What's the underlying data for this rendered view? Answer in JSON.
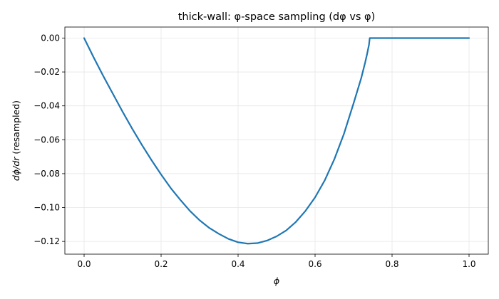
{
  "chart_data": {
    "type": "line",
    "title": "thick-wall: φ-space sampling (dφ vs φ)",
    "xlabel": "ϕ",
    "ylabel_math": "dϕ/dr",
    "ylabel_suffix": " (resampled)",
    "xlim": [
      -0.05,
      1.05
    ],
    "ylim": [
      -0.1275,
      0.0065
    ],
    "xticks": [
      0.0,
      0.2,
      0.4,
      0.6,
      0.8,
      1.0
    ],
    "xtick_labels": [
      "0.0",
      "0.2",
      "0.4",
      "0.6",
      "0.8",
      "1.0"
    ],
    "yticks": [
      0.0,
      -0.02,
      -0.04,
      -0.06,
      -0.08,
      -0.1,
      -0.12
    ],
    "ytick_labels": [
      "0.00",
      "−0.02",
      "−0.04",
      "−0.06",
      "−0.08",
      "−0.10",
      "−0.12"
    ],
    "grid": true,
    "line_color": "#1f77b4",
    "series": [
      {
        "x": [
          0.0,
          0.025,
          0.05,
          0.075,
          0.1,
          0.125,
          0.15,
          0.175,
          0.2,
          0.225,
          0.25,
          0.275,
          0.3,
          0.325,
          0.35,
          0.375,
          0.4,
          0.425,
          0.45,
          0.475,
          0.5,
          0.525,
          0.55,
          0.575,
          0.6,
          0.625,
          0.65,
          0.675,
          0.7,
          0.71,
          0.72,
          0.73,
          0.735,
          0.74,
          0.742,
          0.745,
          0.75,
          0.8,
          0.85,
          0.9,
          0.95,
          1.0
        ],
        "y": [
          0.0,
          -0.0115,
          -0.0225,
          -0.033,
          -0.0435,
          -0.0535,
          -0.063,
          -0.072,
          -0.0805,
          -0.0885,
          -0.0955,
          -0.102,
          -0.1075,
          -0.112,
          -0.1155,
          -0.1185,
          -0.1205,
          -0.1213,
          -0.121,
          -0.1195,
          -0.117,
          -0.1135,
          -0.1085,
          -0.102,
          -0.094,
          -0.084,
          -0.0715,
          -0.0565,
          -0.0385,
          -0.031,
          -0.0235,
          -0.0145,
          -0.0095,
          -0.004,
          0.0,
          0.0,
          0.0,
          0.0,
          0.0,
          0.0,
          0.0,
          0.0
        ]
      }
    ]
  }
}
